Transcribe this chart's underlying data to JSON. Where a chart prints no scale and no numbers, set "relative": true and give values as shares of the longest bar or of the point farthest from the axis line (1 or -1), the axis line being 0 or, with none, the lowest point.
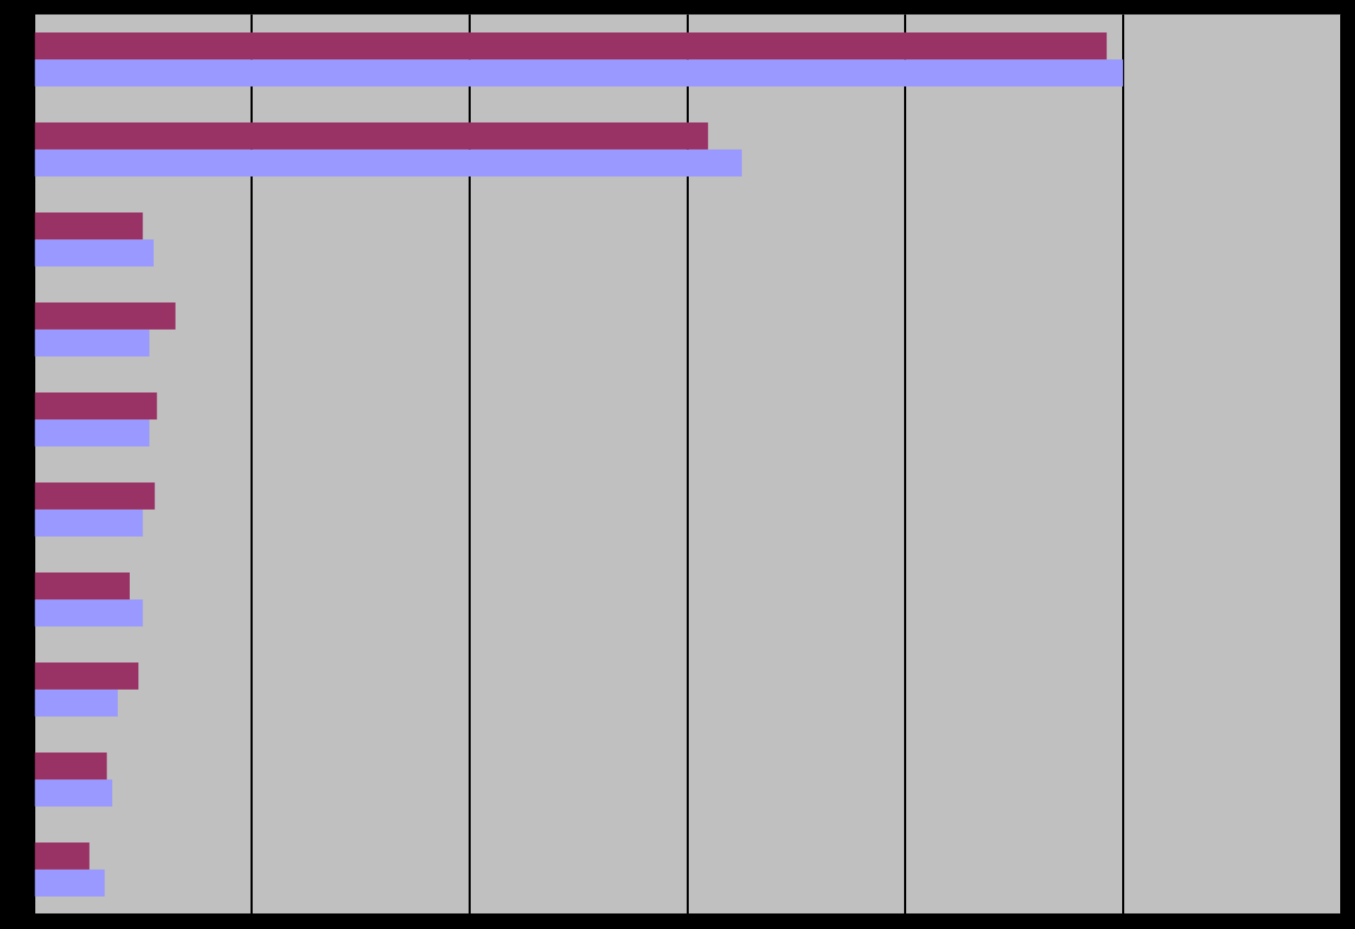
{
  "chart_data": {
    "type": "bar",
    "orientation": "horizontal",
    "relative": true,
    "grid": "x",
    "categories": [
      null,
      null,
      null,
      null,
      null,
      null,
      null,
      null,
      null,
      null
    ],
    "series": [
      {
        "color": "#993366",
        "values": [
          0.985,
          0.619,
          0.1,
          0.13,
          0.113,
          0.111,
          0.088,
          0.096,
          0.067,
          0.051
        ]
      },
      {
        "color": "#9999ff",
        "values": [
          1,
          0.65,
          0.11,
          0.106,
          0.106,
          0.1,
          0.1,
          0.077,
          0.072,
          0.065
        ]
      }
    ]
  }
}
